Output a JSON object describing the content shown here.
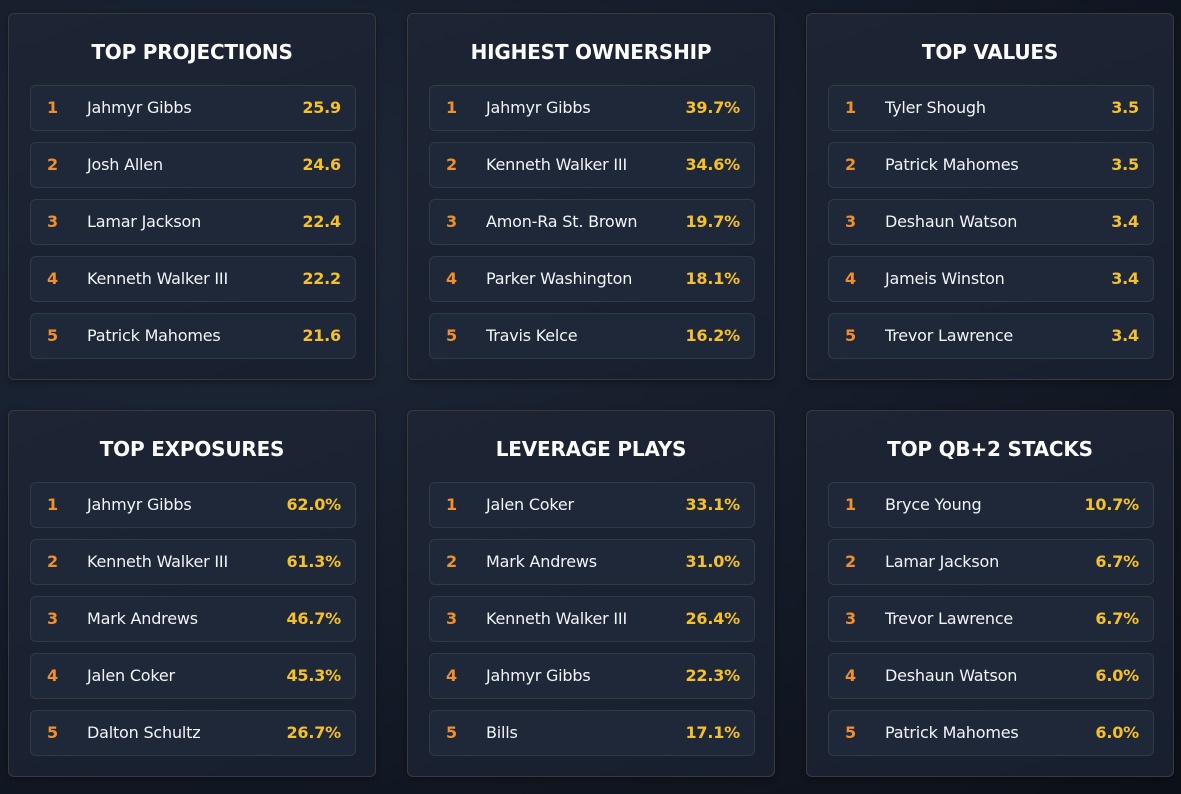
{
  "colors": {
    "rank": "#f0902a",
    "value": "#f5c028",
    "title": "#ffffff",
    "card_background": "#1d2535",
    "page_background": "#141b28"
  },
  "cards": [
    {
      "title": "TOP PROJECTIONS",
      "rows": [
        {
          "rank": "1",
          "name": "Jahmyr Gibbs",
          "value": "25.9"
        },
        {
          "rank": "2",
          "name": "Josh Allen",
          "value": "24.6"
        },
        {
          "rank": "3",
          "name": "Lamar Jackson",
          "value": "22.4"
        },
        {
          "rank": "4",
          "name": "Kenneth Walker III",
          "value": "22.2"
        },
        {
          "rank": "5",
          "name": "Patrick Mahomes",
          "value": "21.6"
        }
      ]
    },
    {
      "title": "HIGHEST OWNERSHIP",
      "rows": [
        {
          "rank": "1",
          "name": "Jahmyr Gibbs",
          "value": "39.7%"
        },
        {
          "rank": "2",
          "name": "Kenneth Walker III",
          "value": "34.6%"
        },
        {
          "rank": "3",
          "name": "Amon-Ra St. Brown",
          "value": "19.7%"
        },
        {
          "rank": "4",
          "name": "Parker Washington",
          "value": "18.1%"
        },
        {
          "rank": "5",
          "name": "Travis Kelce",
          "value": "16.2%"
        }
      ]
    },
    {
      "title": "TOP VALUES",
      "rows": [
        {
          "rank": "1",
          "name": "Tyler Shough",
          "value": "3.5"
        },
        {
          "rank": "2",
          "name": "Patrick Mahomes",
          "value": "3.5"
        },
        {
          "rank": "3",
          "name": "Deshaun Watson",
          "value": "3.4"
        },
        {
          "rank": "4",
          "name": "Jameis Winston",
          "value": "3.4"
        },
        {
          "rank": "5",
          "name": "Trevor Lawrence",
          "value": "3.4"
        }
      ]
    },
    {
      "title": "TOP EXPOSURES",
      "rows": [
        {
          "rank": "1",
          "name": "Jahmyr Gibbs",
          "value": "62.0%"
        },
        {
          "rank": "2",
          "name": "Kenneth Walker III",
          "value": "61.3%"
        },
        {
          "rank": "3",
          "name": "Mark Andrews",
          "value": "46.7%"
        },
        {
          "rank": "4",
          "name": "Jalen Coker",
          "value": "45.3%"
        },
        {
          "rank": "5",
          "name": "Dalton Schultz",
          "value": "26.7%"
        }
      ]
    },
    {
      "title": "LEVERAGE PLAYS",
      "rows": [
        {
          "rank": "1",
          "name": "Jalen Coker",
          "value": "33.1%"
        },
        {
          "rank": "2",
          "name": "Mark Andrews",
          "value": "31.0%"
        },
        {
          "rank": "3",
          "name": "Kenneth Walker III",
          "value": "26.4%"
        },
        {
          "rank": "4",
          "name": "Jahmyr Gibbs",
          "value": "22.3%"
        },
        {
          "rank": "5",
          "name": "Bills",
          "value": "17.1%"
        }
      ]
    },
    {
      "title": "TOP QB+2 STACKS",
      "rows": [
        {
          "rank": "1",
          "name": "Bryce Young",
          "value": "10.7%"
        },
        {
          "rank": "2",
          "name": "Lamar Jackson",
          "value": "6.7%"
        },
        {
          "rank": "3",
          "name": "Trevor Lawrence",
          "value": "6.7%"
        },
        {
          "rank": "4",
          "name": "Deshaun Watson",
          "value": "6.0%"
        },
        {
          "rank": "5",
          "name": "Patrick Mahomes",
          "value": "6.0%"
        }
      ]
    }
  ]
}
